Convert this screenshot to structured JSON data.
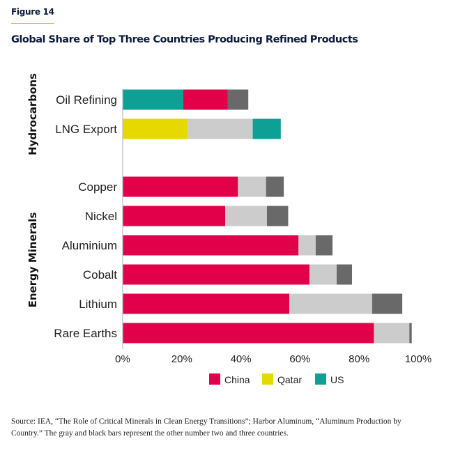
{
  "figure_label": "Figure 14",
  "title": "Global Share of Top Three Countries Producing Refined Products",
  "source": "Source: IEA, “The Role of Critical Minerals in Clean Energy Transitions”; Harbor Aluminum, “Aluminum Production by Country.” The gray and black bars represent the other number two and three countries.",
  "colors": {
    "China": "#e3004a",
    "Qatar": "#e6d900",
    "US": "#0fa095",
    "second_other": "#cccccc",
    "third_other": "#696969",
    "axis": "#bbbbbb",
    "text": "#222222"
  },
  "chart_data": {
    "type": "bar",
    "orientation": "horizontal",
    "stacked": true,
    "title": "Global Share of Top Three Countries Producing Refined Products",
    "xlabel": "",
    "ylabel": "",
    "xlim": [
      0,
      100
    ],
    "x_ticks": [
      "0%",
      "20%",
      "40%",
      "60%",
      "80%",
      "100%"
    ],
    "grid": false,
    "legend": {
      "position": "bottom",
      "entries": [
        "China",
        "Qatar",
        "US"
      ]
    },
    "groups": [
      {
        "name": "Hydrocarbons",
        "categories": [
          {
            "label": "Oil Refining",
            "segments": [
              {
                "country": "US",
                "value": 20.5,
                "color_key": "US"
              },
              {
                "country": "China",
                "value": 15,
                "color_key": "China"
              },
              {
                "country": "other #3",
                "value": 7,
                "color_key": "third_other"
              }
            ]
          },
          {
            "label": "LNG Export",
            "segments": [
              {
                "country": "Qatar",
                "value": 22,
                "color_key": "Qatar"
              },
              {
                "country": "other #2",
                "value": 22,
                "color_key": "second_other"
              },
              {
                "country": "US",
                "value": 9.5,
                "color_key": "US"
              }
            ]
          }
        ]
      },
      {
        "name": "Energy Minerals",
        "categories": [
          {
            "label": "Copper",
            "segments": [
              {
                "country": "China",
                "value": 39,
                "color_key": "China"
              },
              {
                "country": "other #2",
                "value": 9.5,
                "color_key": "second_other"
              },
              {
                "country": "other #3",
                "value": 6,
                "color_key": "third_other"
              }
            ]
          },
          {
            "label": "Nickel",
            "segments": [
              {
                "country": "China",
                "value": 34.7,
                "color_key": "China"
              },
              {
                "country": "other #2",
                "value": 14.1,
                "color_key": "second_other"
              },
              {
                "country": "other #3",
                "value": 7.2,
                "color_key": "third_other"
              }
            ]
          },
          {
            "label": "Aluminium",
            "segments": [
              {
                "country": "China",
                "value": 59.5,
                "color_key": "China"
              },
              {
                "country": "other #2",
                "value": 5.8,
                "color_key": "second_other"
              },
              {
                "country": "other #3",
                "value": 5.7,
                "color_key": "third_other"
              }
            ]
          },
          {
            "label": "Cobalt",
            "segments": [
              {
                "country": "China",
                "value": 63.2,
                "color_key": "China"
              },
              {
                "country": "other #2",
                "value": 9.2,
                "color_key": "second_other"
              },
              {
                "country": "other #3",
                "value": 5.2,
                "color_key": "third_other"
              }
            ]
          },
          {
            "label": "Lithium",
            "segments": [
              {
                "country": "China",
                "value": 56.4,
                "color_key": "China"
              },
              {
                "country": "other #2",
                "value": 28,
                "color_key": "second_other"
              },
              {
                "country": "other #3",
                "value": 10.2,
                "color_key": "third_other"
              }
            ]
          },
          {
            "label": "Rare Earths",
            "segments": [
              {
                "country": "China",
                "value": 85,
                "color_key": "China"
              },
              {
                "country": "other #2",
                "value": 12,
                "color_key": "second_other"
              },
              {
                "country": "other #3",
                "value": 0.8,
                "color_key": "third_other"
              }
            ]
          }
        ]
      }
    ]
  }
}
